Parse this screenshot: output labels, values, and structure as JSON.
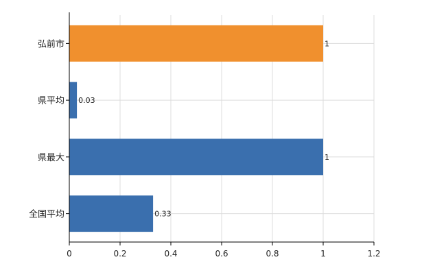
{
  "chart_data": {
    "type": "bar",
    "orientation": "horizontal",
    "title": "",
    "xlabel": "",
    "ylabel": "",
    "categories": [
      "弘前市",
      "県平均",
      "県最大",
      "全国平均"
    ],
    "values": [
      1,
      0.03,
      1,
      0.33
    ],
    "value_labels": [
      "1",
      "0.03",
      "1",
      "0.33"
    ],
    "bar_colors": [
      "#f0902e",
      "#3a6fae",
      "#3a6fae",
      "#3a6fae"
    ],
    "xlim": [
      0,
      1.2
    ],
    "xticks": [
      0,
      0.2,
      0.4,
      0.6,
      0.8,
      1,
      1.2
    ],
    "xtick_labels": [
      "0",
      "0.2",
      "0.4",
      "0.6",
      "0.8",
      "1",
      "1.2"
    ],
    "grid": true,
    "legend": "none"
  }
}
